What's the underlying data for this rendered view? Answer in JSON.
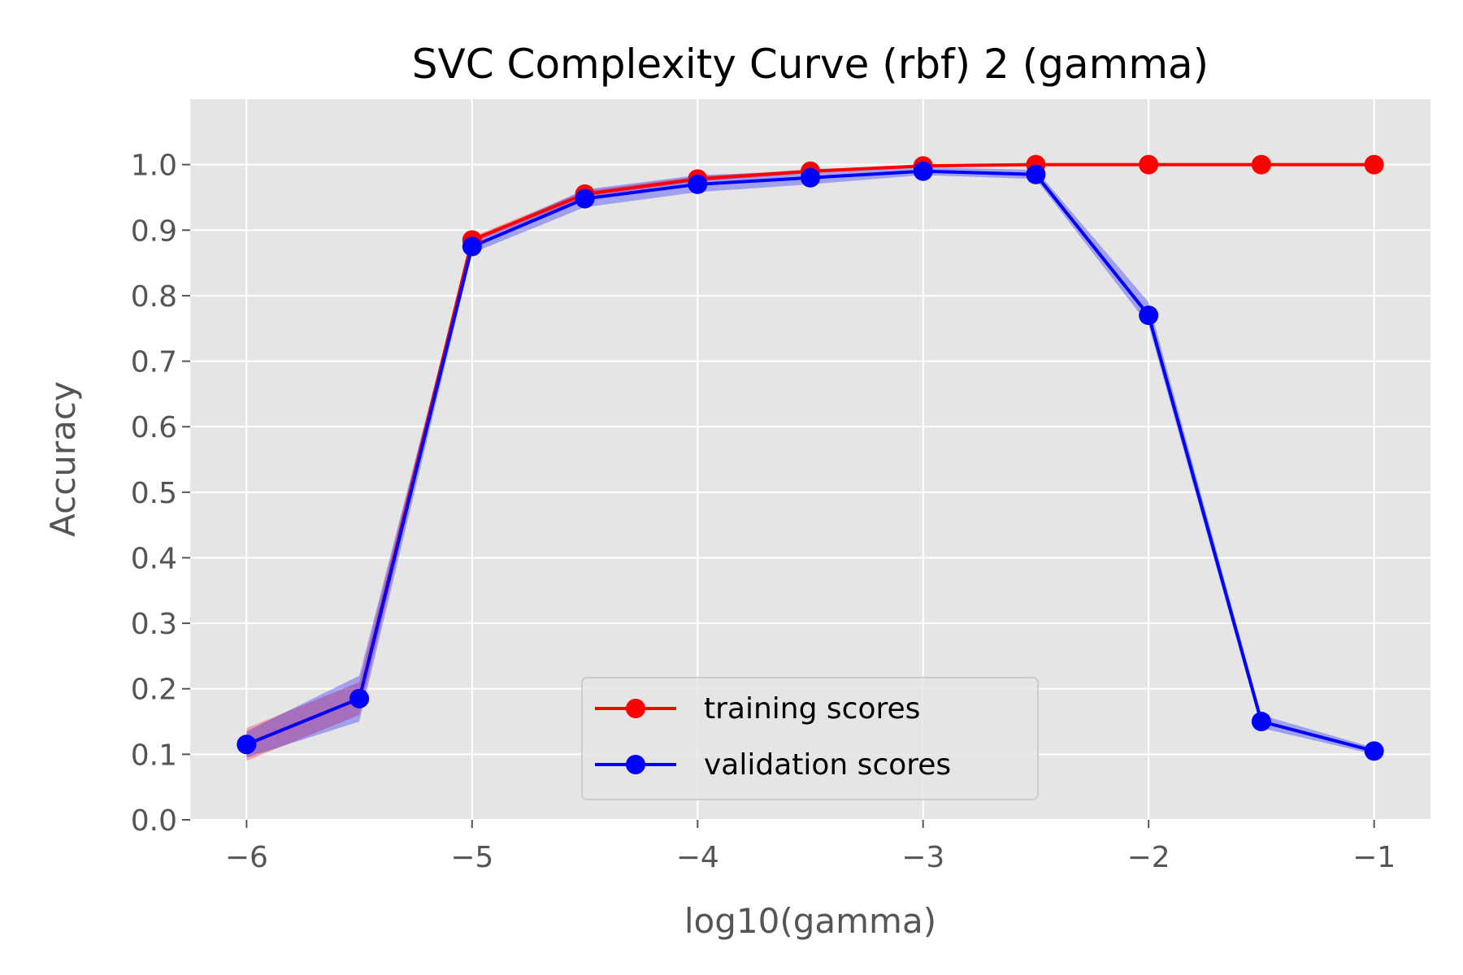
{
  "chart_data": {
    "type": "line",
    "title": "SVC Complexity Curve (rbf) 2 (gamma)",
    "xlabel": "log10(gamma)",
    "ylabel": "Accuracy",
    "xlim": [
      -6.25,
      -0.75
    ],
    "ylim": [
      0.0,
      1.1
    ],
    "xticks": [
      -6,
      -5,
      -4,
      -3,
      -2,
      -1
    ],
    "xtick_labels": [
      "−6",
      "−5",
      "−4",
      "−3",
      "−2",
      "−1"
    ],
    "yticks": [
      0.0,
      0.1,
      0.2,
      0.3,
      0.4,
      0.5,
      0.6,
      0.7,
      0.8,
      0.9,
      1.0
    ],
    "ytick_labels": [
      "0.0",
      "0.1",
      "0.2",
      "0.3",
      "0.4",
      "0.5",
      "0.6",
      "0.7",
      "0.8",
      "0.9",
      "1.0"
    ],
    "grid": true,
    "background": "#e5e5e5",
    "legend_position": "lower-center",
    "x": [
      -6,
      -5.5,
      -5,
      -4.5,
      -4,
      -3.5,
      -3,
      -2.5,
      -2,
      -1.5,
      -1
    ],
    "series": [
      {
        "name": "training scores",
        "color": "#ff0000",
        "values": [
          0.115,
          0.185,
          0.885,
          0.955,
          0.978,
          0.99,
          0.998,
          1.0,
          1.0,
          1.0,
          1.0
        ],
        "band_low": [
          0.09,
          0.16,
          0.88,
          0.95,
          0.974,
          0.987,
          0.997,
          0.999,
          1.0,
          1.0,
          1.0
        ],
        "band_high": [
          0.14,
          0.21,
          0.89,
          0.96,
          0.982,
          0.993,
          0.999,
          1.0,
          1.0,
          1.0,
          1.0
        ]
      },
      {
        "name": "validation scores",
        "color": "#0000ff",
        "values": [
          0.115,
          0.185,
          0.875,
          0.948,
          0.97,
          0.98,
          0.99,
          0.985,
          0.77,
          0.15,
          0.105
        ],
        "band_low": [
          0.095,
          0.15,
          0.865,
          0.935,
          0.958,
          0.97,
          0.984,
          0.978,
          0.755,
          0.14,
          0.1
        ],
        "band_high": [
          0.135,
          0.22,
          0.885,
          0.962,
          0.984,
          0.99,
          0.996,
          0.992,
          0.79,
          0.16,
          0.11
        ]
      }
    ]
  }
}
